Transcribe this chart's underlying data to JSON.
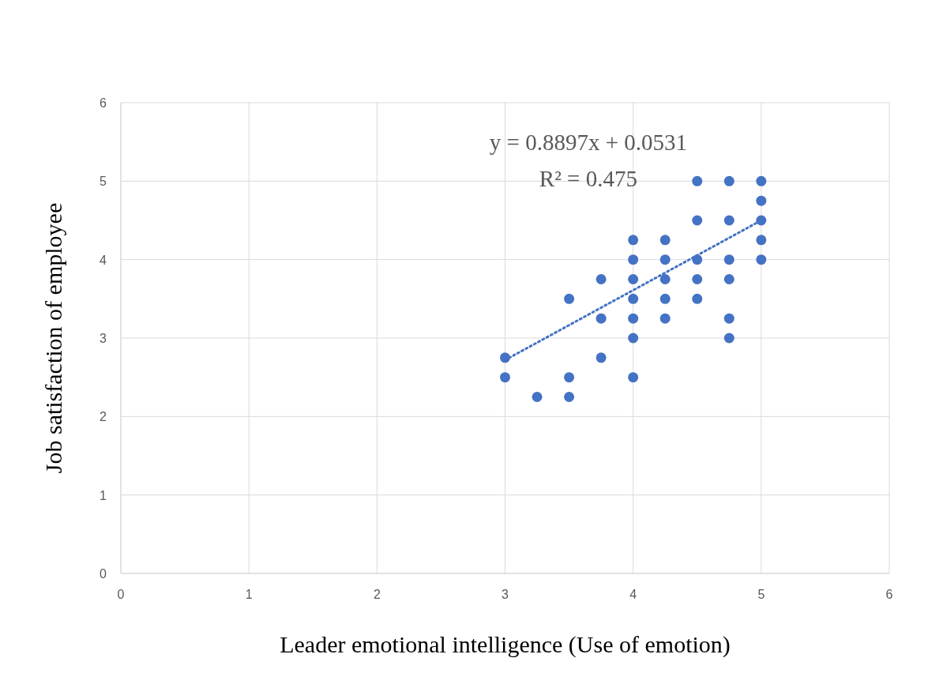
{
  "chart_data": {
    "type": "scatter",
    "xlabel": "Leader emotional intelligence (Use of emotion)",
    "ylabel": "Job satisfaction of employee",
    "xlim": [
      0,
      6
    ],
    "ylim": [
      0,
      6
    ],
    "xticks": [
      0,
      1,
      2,
      3,
      4,
      5,
      6
    ],
    "yticks": [
      0,
      1,
      2,
      3,
      4,
      5,
      6
    ],
    "grid": true,
    "annotations": [
      "y = 0.8897x + 0.0531",
      "R² = 0.475"
    ],
    "series": [
      {
        "color": "#4472c4",
        "marker": "circle",
        "x": [
          3,
          3,
          3.25,
          3.5,
          3.5,
          3.5,
          3.75,
          3.75,
          3.75,
          4,
          4,
          4,
          4,
          4,
          4,
          4,
          4.25,
          4.25,
          4.25,
          4.25,
          4.25,
          4.5,
          4.5,
          4.5,
          4.5,
          4.5,
          4.75,
          4.75,
          4.75,
          4.75,
          4.75,
          4.75,
          5,
          5,
          5,
          5,
          5
        ],
        "values": [
          2.75,
          2.5,
          2.25,
          3.5,
          2.5,
          2.25,
          3.75,
          3.25,
          2.75,
          4.25,
          4,
          3.75,
          3.5,
          3.25,
          3,
          2.5,
          4.25,
          4,
          3.75,
          3.5,
          3.25,
          5,
          4.5,
          4,
          3.75,
          3.5,
          5,
          4.5,
          4,
          3.75,
          3.25,
          3,
          5,
          4.75,
          4.5,
          4.25,
          4
        ]
      },
      {
        "type": "line",
        "color": "#4472c4",
        "line_style": "dotted",
        "marker": "none",
        "x": [
          3,
          5
        ],
        "values": [
          2.72,
          4.5
        ]
      }
    ]
  }
}
